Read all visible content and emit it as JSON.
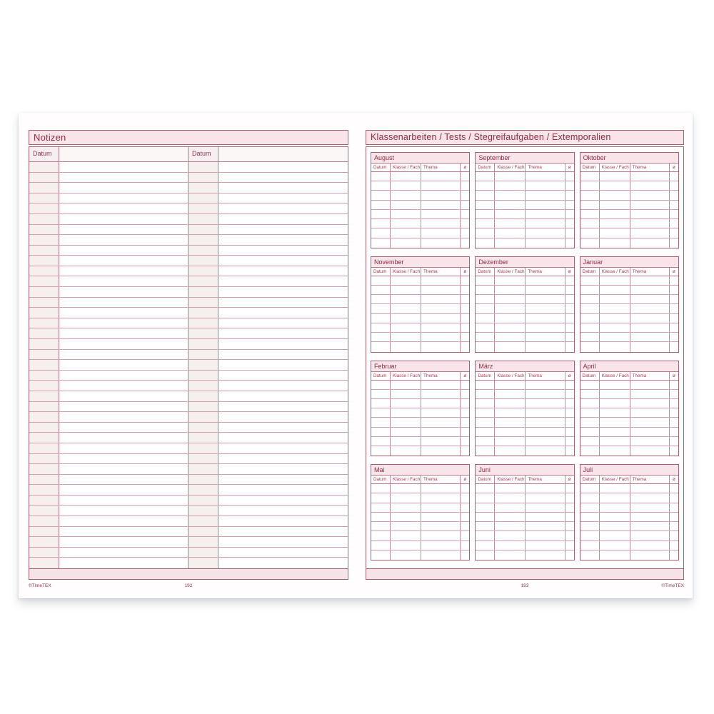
{
  "spread": {
    "left_page": {
      "title": "Notizen",
      "date_column_label": "Datum",
      "row_count": 39,
      "page_number": "192",
      "copyright": "©TimeTEX"
    },
    "right_page": {
      "title": "Klassenarbeiten / Tests / Stegreifaufgaben / Extemporalien",
      "months": [
        "August",
        "September",
        "Oktober",
        "November",
        "Dezember",
        "Januar",
        "Februar",
        "März",
        "April",
        "Mai",
        "Juni",
        "Juli"
      ],
      "column_headers": [
        "Datum",
        "Klasse / Fach",
        "Thema",
        "ø"
      ],
      "rows_per_month": 8,
      "page_number": "193",
      "copyright": "©TimeTEX"
    },
    "colors": {
      "title_text": "#8c2e44",
      "band_fill": "#f8e4e9",
      "outer_border": "#a8606f",
      "grid_line": "#c08e99",
      "row_line": "#d2a0ab",
      "date_cell_fill": "#f5efee",
      "footer_band_fill": "#f6e3e8"
    }
  }
}
